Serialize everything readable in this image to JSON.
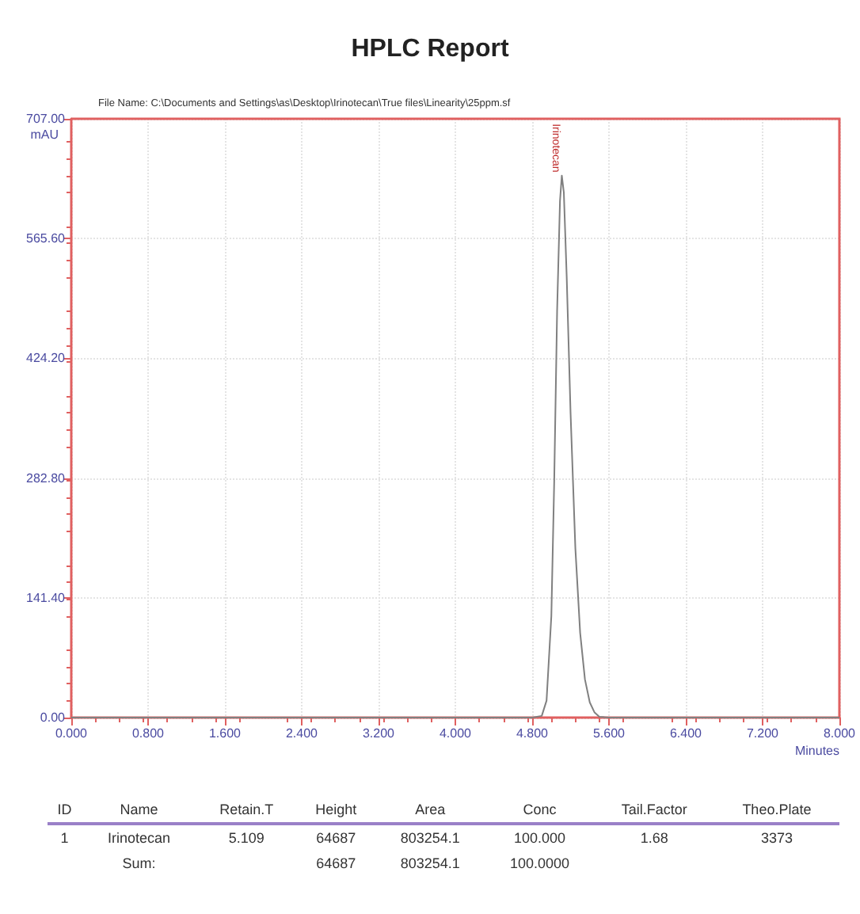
{
  "chart_data": {
    "type": "line",
    "title": "HPLC Report",
    "xlabel": "Minutes",
    "ylabel": "mAU",
    "x": [
      0,
      4.8,
      4.9,
      4.95,
      5.0,
      5.03,
      5.06,
      5.09,
      5.109,
      5.13,
      5.16,
      5.2,
      5.25,
      5.3,
      5.35,
      5.4,
      5.45,
      5.5,
      5.6,
      8
    ],
    "series": [
      {
        "color": "#808080",
        "values": [
          0,
          0,
          2,
          20,
          120,
          280,
          480,
          610,
          640,
          620,
          520,
          360,
          200,
          100,
          45,
          18,
          6,
          1,
          0,
          0
        ]
      }
    ],
    "xlim": [
      0,
      8
    ],
    "xticks": [
      {
        "value": 0,
        "label": "0.000"
      },
      {
        "value": 0.8,
        "label": "0.800"
      },
      {
        "value": 1.6,
        "label": "1.600"
      },
      {
        "value": 2.4,
        "label": "2.400"
      },
      {
        "value": 3.2,
        "label": "3.200"
      },
      {
        "value": 4,
        "label": "4.000"
      },
      {
        "value": 4.8,
        "label": "4.800"
      },
      {
        "value": 5.6,
        "label": "5.600"
      },
      {
        "value": 6.4,
        "label": "6.400"
      },
      {
        "value": 7.2,
        "label": "7.200"
      },
      {
        "value": 8,
        "label": "8.000"
      }
    ],
    "ylim": [
      0,
      707
    ],
    "yticks": [
      {
        "value": 0,
        "label": "0.00"
      },
      {
        "value": 141.4,
        "label": "141.40"
      },
      {
        "value": 282.8,
        "label": "282.80"
      },
      {
        "value": 424.2,
        "label": "424.20"
      },
      {
        "value": 565.6,
        "label": "565.60"
      },
      {
        "value": 707,
        "label": "707.00"
      }
    ],
    "grid": true,
    "marker": "none",
    "line_style": "solid",
    "annotations": [
      "File Name: C:\\Documents and Settings\\as\\Desktop\\Irinotecan\\True files\\Linearity\\25ppm.sf",
      {
        "text": "Irinotecan",
        "x": 5.109,
        "y": 640
      },
      "ID\tName\tRetain.T\tHeight\tArea\tConc\tTail.Factor\tTheo.Plate",
      "1\tIrinotecan\t5.109\t64687\t803254.1\t100.000\t1.68\t3373",
      "\tSum:\t\t64687\t803254.1\t100.0000\t\t"
    ]
  }
}
